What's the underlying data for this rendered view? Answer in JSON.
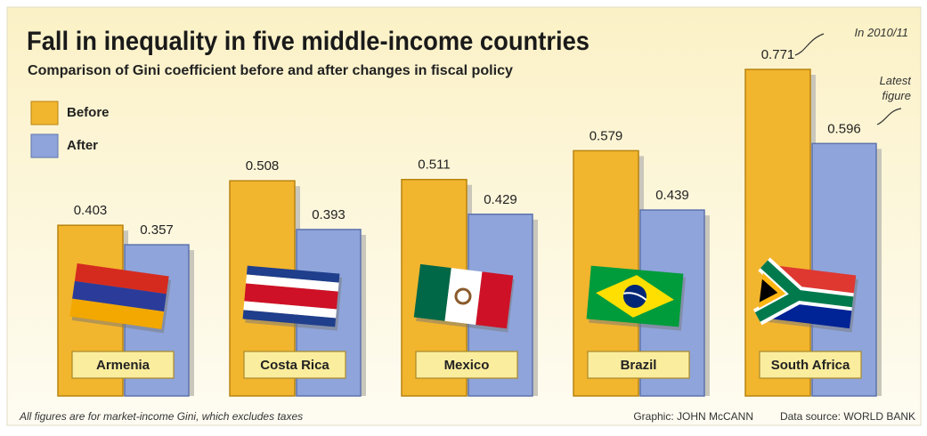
{
  "chart_data": {
    "type": "bar",
    "title": "Fall in inequality in five middle-income countries",
    "subtitle": "Comparison of Gini coefficient before and after changes in fiscal policy",
    "categories": [
      "Armenia",
      "Costa Rica",
      "Mexico",
      "Brazil",
      "South Africa"
    ],
    "series": [
      {
        "name": "Before",
        "color": "#f2b52e",
        "values": [
          0.403,
          0.508,
          0.511,
          0.579,
          0.771
        ]
      },
      {
        "name": "After",
        "color": "#8fa4da",
        "values": [
          0.357,
          0.393,
          0.429,
          0.439,
          0.596
        ]
      }
    ],
    "annotations": [
      "In 2010/11",
      "Latest figure"
    ],
    "footnote": "All figures are for market-income Gini, which excludes taxes",
    "credit": "Graphic: JOHN McCANN",
    "source": "Data source: WORLD BANK"
  }
}
